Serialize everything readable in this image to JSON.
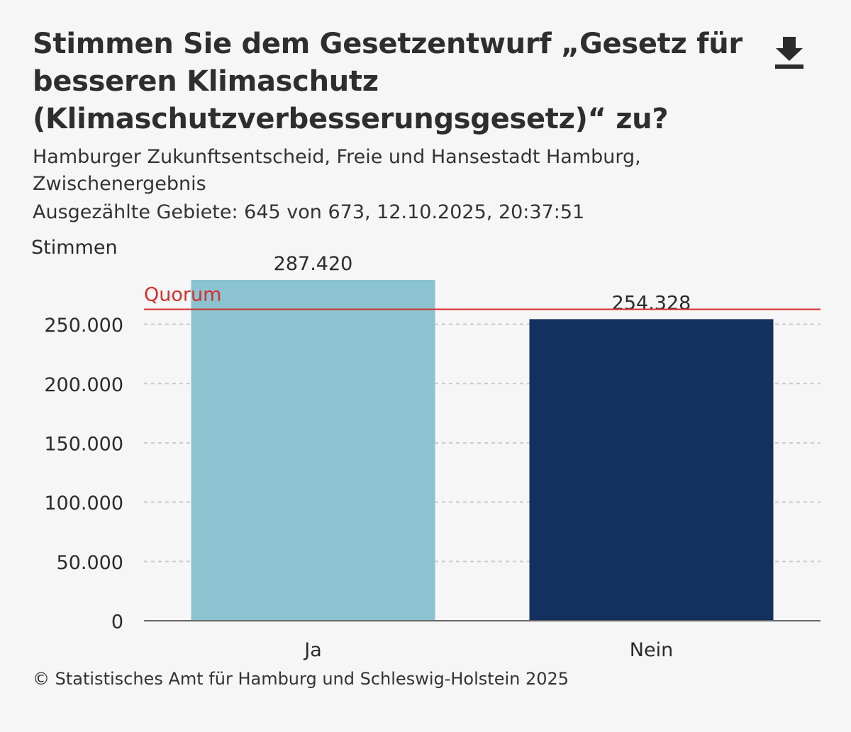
{
  "header": {
    "title": "Stimmen Sie dem Gesetzentwurf „Gesetz für besseren Klimaschutz (Klimaschutzverbesserungsgesetz)“ zu?",
    "subtitle": "Hamburger Zukunftsentscheid, Freie und Hansestadt Hamburg, Zwischenergebnis",
    "meta": "Ausgezählte Gebiete: 645 von 673, 12.10.2025, 20:37:51",
    "download_icon": "download-icon"
  },
  "chart_data": {
    "type": "bar",
    "title": "Stimmen Sie dem Gesetzentwurf „Gesetz für besseren Klimaschutz (Klimaschutzverbesserungsgesetz)“ zu?",
    "ylabel": "Stimmen",
    "xlabel": "",
    "categories": [
      "Ja",
      "Nein"
    ],
    "values": [
      287420,
      254328
    ],
    "value_labels": [
      "287.420",
      "254.328"
    ],
    "colors": [
      "#8bc3d1",
      "#14305e"
    ],
    "ylim": [
      0,
      287420
    ],
    "yticks": [
      0,
      50000,
      100000,
      150000,
      200000,
      250000
    ],
    "ytick_labels": [
      "0",
      "50.000",
      "100.000",
      "150.000",
      "200.000",
      "250.000"
    ],
    "grid": true,
    "reference_line": {
      "label": "Quorum",
      "value": 262609,
      "color": "#d3302c"
    }
  },
  "footer": {
    "source": "© Statistisches Amt für Hamburg und Schleswig-Holstein 2025"
  }
}
